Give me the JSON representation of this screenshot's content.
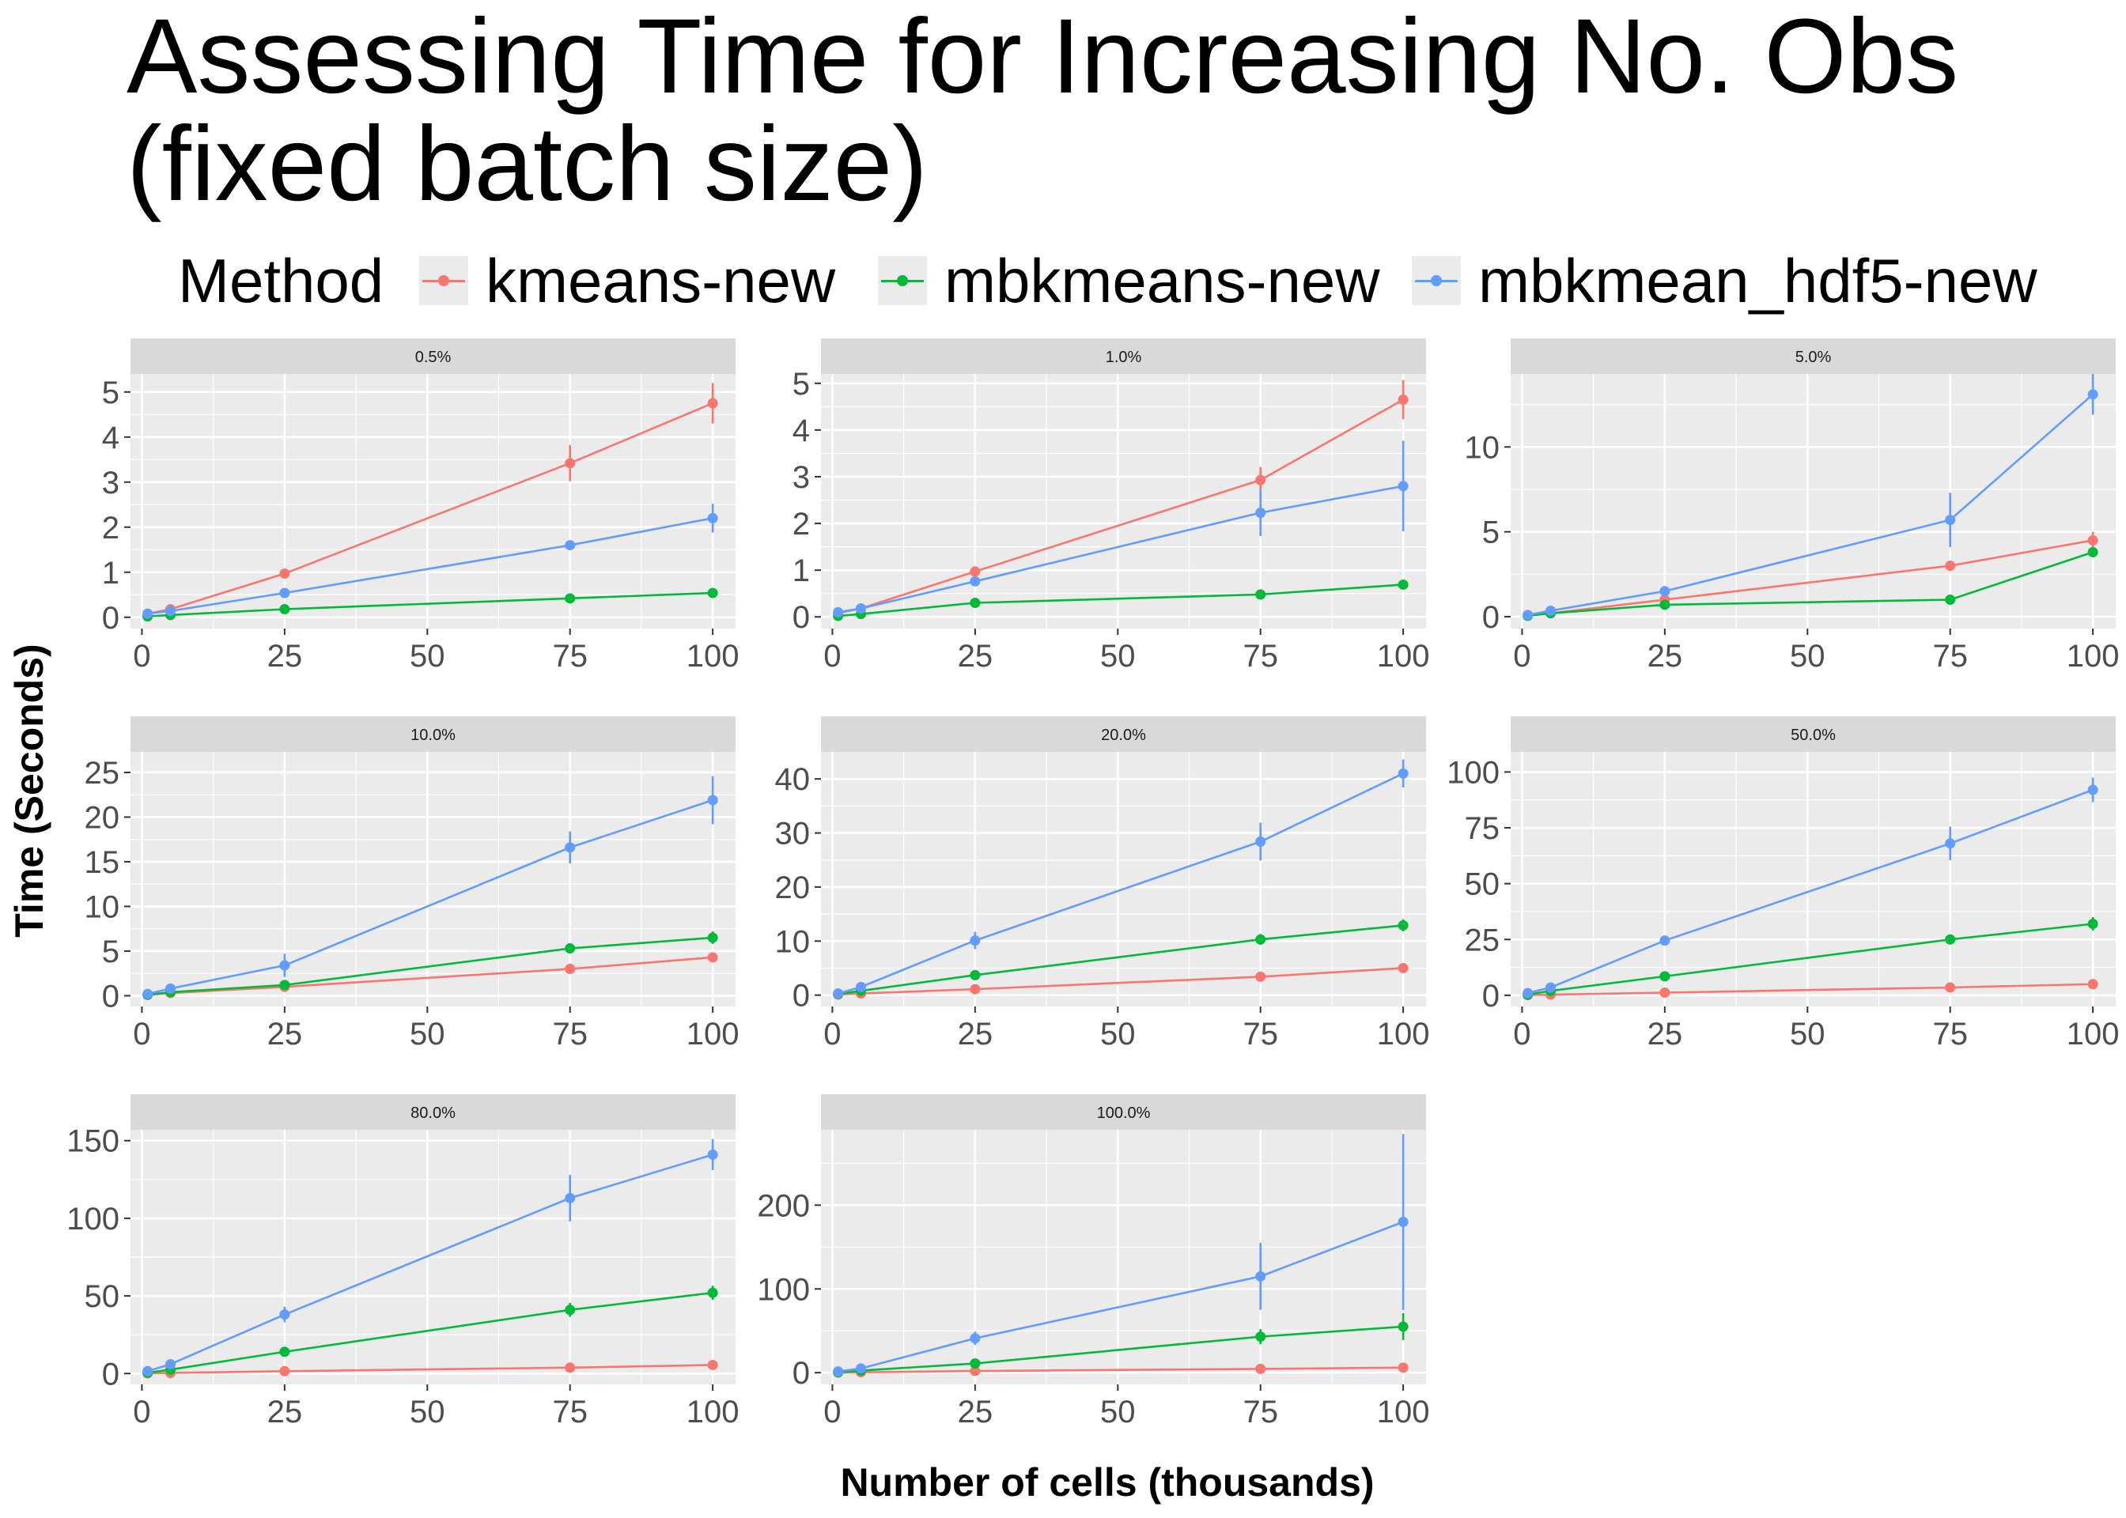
{
  "title": "Assessing Time for Increasing No. Obs\n(fixed batch size)",
  "legend": {
    "title": "Method",
    "items": [
      {
        "label": "kmeans-new",
        "color": "#F8766D"
      },
      {
        "label": "mbkmeans-new",
        "color": "#00BA38"
      },
      {
        "label": "mbkmean_hdf5-new",
        "color": "#619CFF"
      }
    ]
  },
  "xlabel": "Number of cells (thousands)",
  "ylabel": "Time (Seconds)",
  "chart_data": [
    {
      "type": "line",
      "title": "0.5%",
      "x": [
        1,
        5,
        25,
        75,
        100
      ],
      "xlim": [
        -2,
        104
      ],
      "ylim": [
        -0.25,
        5.4
      ],
      "xticks": [
        0,
        25,
        50,
        75,
        100
      ],
      "yticks": [
        0,
        1,
        2,
        3,
        4,
        5
      ],
      "series": [
        {
          "name": "kmeans-new",
          "values": [
            0.08,
            0.18,
            0.97,
            3.42,
            4.75
          ],
          "err": [
            0.02,
            0.03,
            0.05,
            0.4,
            0.45
          ]
        },
        {
          "name": "mbkmeans-new",
          "values": [
            0.02,
            0.05,
            0.18,
            0.42,
            0.54
          ],
          "err": [
            0.01,
            0.01,
            0.02,
            0.03,
            0.04
          ]
        },
        {
          "name": "mbkmean_hdf5-new",
          "values": [
            0.08,
            0.14,
            0.54,
            1.6,
            2.2
          ],
          "err": [
            0.02,
            0.03,
            0.05,
            0.08,
            0.32
          ]
        }
      ]
    },
    {
      "type": "line",
      "title": "1.0%",
      "x": [
        1,
        5,
        25,
        75,
        100
      ],
      "xlim": [
        -2,
        104
      ],
      "ylim": [
        -0.25,
        5.2
      ],
      "xticks": [
        0,
        25,
        50,
        75,
        100
      ],
      "yticks": [
        0,
        1,
        2,
        3,
        4,
        5
      ],
      "series": [
        {
          "name": "kmeans-new",
          "values": [
            0.08,
            0.18,
            0.97,
            2.93,
            4.65
          ],
          "err": [
            0.02,
            0.03,
            0.05,
            0.28,
            0.42
          ]
        },
        {
          "name": "mbkmeans-new",
          "values": [
            0.02,
            0.06,
            0.3,
            0.48,
            0.69
          ],
          "err": [
            0.01,
            0.01,
            0.02,
            0.03,
            0.04
          ]
        },
        {
          "name": "mbkmean_hdf5-new",
          "values": [
            0.1,
            0.18,
            0.76,
            2.23,
            2.8
          ],
          "err": [
            0.02,
            0.03,
            0.06,
            0.5,
            0.97
          ]
        }
      ]
    },
    {
      "type": "line",
      "title": "5.0%",
      "x": [
        1,
        5,
        25,
        75,
        100
      ],
      "xlim": [
        -2,
        104
      ],
      "ylim": [
        -0.7,
        14.3
      ],
      "xticks": [
        0,
        25,
        50,
        75,
        100
      ],
      "yticks": [
        0,
        5,
        10
      ],
      "series": [
        {
          "name": "kmeans-new",
          "values": [
            0.1,
            0.2,
            1.0,
            3.0,
            4.5
          ],
          "err": [
            0.02,
            0.03,
            0.08,
            0.3,
            0.5
          ]
        },
        {
          "name": "mbkmeans-new",
          "values": [
            0.05,
            0.2,
            0.7,
            1.0,
            3.8
          ],
          "err": [
            0.01,
            0.02,
            0.05,
            0.1,
            0.3
          ]
        },
        {
          "name": "mbkmean_hdf5-new",
          "values": [
            0.1,
            0.35,
            1.5,
            5.7,
            13.1
          ],
          "err": [
            0.03,
            0.05,
            0.1,
            1.6,
            1.2
          ]
        }
      ]
    },
    {
      "type": "line",
      "title": "10.0%",
      "x": [
        1,
        5,
        25,
        75,
        100
      ],
      "xlim": [
        -2,
        104
      ],
      "ylim": [
        -1.2,
        27.3
      ],
      "xticks": [
        0,
        25,
        50,
        75,
        100
      ],
      "yticks": [
        0,
        5,
        10,
        15,
        20,
        25
      ],
      "series": [
        {
          "name": "kmeans-new",
          "values": [
            0.1,
            0.3,
            1.0,
            3.0,
            4.3
          ],
          "err": [
            0.02,
            0.03,
            0.1,
            0.2,
            0.4
          ]
        },
        {
          "name": "mbkmeans-new",
          "values": [
            0.1,
            0.4,
            1.2,
            5.3,
            6.5
          ],
          "err": [
            0.02,
            0.05,
            0.2,
            0.4,
            0.7
          ]
        },
        {
          "name": "mbkmean_hdf5-new",
          "values": [
            0.2,
            0.8,
            3.4,
            16.6,
            21.9
          ],
          "err": [
            0.05,
            0.2,
            1.3,
            1.8,
            2.7
          ]
        }
      ]
    },
    {
      "type": "line",
      "title": "20.0%",
      "x": [
        1,
        5,
        25,
        75,
        100
      ],
      "xlim": [
        -2,
        104
      ],
      "ylim": [
        -2.1,
        45
      ],
      "xticks": [
        0,
        25,
        50,
        75,
        100
      ],
      "yticks": [
        0,
        10,
        20,
        30,
        40
      ],
      "series": [
        {
          "name": "kmeans-new",
          "values": [
            0.1,
            0.3,
            1.1,
            3.4,
            5.0
          ],
          "err": [
            0.02,
            0.05,
            0.1,
            0.3,
            0.4
          ]
        },
        {
          "name": "mbkmeans-new",
          "values": [
            0.2,
            0.8,
            3.7,
            10.3,
            12.9
          ],
          "err": [
            0.05,
            0.1,
            0.3,
            1.0,
            1.1
          ]
        },
        {
          "name": "mbkmean_hdf5-new",
          "values": [
            0.3,
            1.5,
            10.1,
            28.4,
            41.0
          ],
          "err": [
            0.1,
            0.4,
            1.6,
            3.5,
            2.6
          ]
        }
      ]
    },
    {
      "type": "line",
      "title": "50.0%",
      "x": [
        1,
        5,
        25,
        75,
        100
      ],
      "xlim": [
        -2,
        104
      ],
      "ylim": [
        -5,
        109
      ],
      "xticks": [
        0,
        25,
        50,
        75,
        100
      ],
      "yticks": [
        0,
        25,
        50,
        75,
        100
      ],
      "series": [
        {
          "name": "kmeans-new",
          "values": [
            0.1,
            0.3,
            1.2,
            3.5,
            5.0
          ],
          "err": [
            0.02,
            0.05,
            0.1,
            0.3,
            0.4
          ]
        },
        {
          "name": "mbkmeans-new",
          "values": [
            0.3,
            2.0,
            8.5,
            25.0,
            32.0
          ],
          "err": [
            0.1,
            0.3,
            0.6,
            1.2,
            3.0
          ]
        },
        {
          "name": "mbkmean_hdf5-new",
          "values": [
            1.0,
            3.5,
            24.5,
            68.0,
            92.0
          ],
          "err": [
            0.3,
            0.6,
            1.2,
            7.5,
            5.5
          ]
        }
      ]
    },
    {
      "type": "line",
      "title": "80.0%",
      "x": [
        1,
        5,
        25,
        75,
        100
      ],
      "xlim": [
        -2,
        104
      ],
      "ylim": [
        -7,
        157
      ],
      "xticks": [
        0,
        25,
        50,
        75,
        100
      ],
      "yticks": [
        0,
        50,
        100,
        150
      ],
      "series": [
        {
          "name": "kmeans-new",
          "values": [
            0.1,
            0.4,
            1.5,
            3.8,
            5.5
          ],
          "err": [
            0.02,
            0.05,
            0.1,
            0.3,
            0.4
          ]
        },
        {
          "name": "mbkmeans-new",
          "values": [
            0.5,
            2.5,
            14.0,
            41.0,
            52.0
          ],
          "err": [
            0.1,
            0.4,
            1.0,
            4.5,
            4.5
          ]
        },
        {
          "name": "mbkmean_hdf5-new",
          "values": [
            1.5,
            6.0,
            38.0,
            113.0,
            141.0
          ],
          "err": [
            0.3,
            0.8,
            5.0,
            15.0,
            10.0
          ]
        }
      ]
    },
    {
      "type": "line",
      "title": "100.0%",
      "x": [
        1,
        5,
        25,
        75,
        100
      ],
      "xlim": [
        -2,
        104
      ],
      "ylim": [
        -14,
        290
      ],
      "xticks": [
        0,
        25,
        50,
        75,
        100
      ],
      "yticks": [
        0,
        100,
        200
      ],
      "series": [
        {
          "name": "kmeans-new",
          "values": [
            0.1,
            0.5,
            2.0,
            4.5,
            6.0
          ],
          "err": [
            0.02,
            0.05,
            0.2,
            0.5,
            1.0
          ]
        },
        {
          "name": "mbkmeans-new",
          "values": [
            0.5,
            2.5,
            11.0,
            43.0,
            55.0
          ],
          "err": [
            0.1,
            0.4,
            1.5,
            9.0,
            16.0
          ]
        },
        {
          "name": "mbkmean_hdf5-new",
          "values": [
            1.5,
            5.0,
            41.0,
            115.0,
            180.0
          ],
          "err": [
            0.4,
            1.0,
            8.0,
            40.0,
            105.0
          ]
        }
      ]
    }
  ]
}
